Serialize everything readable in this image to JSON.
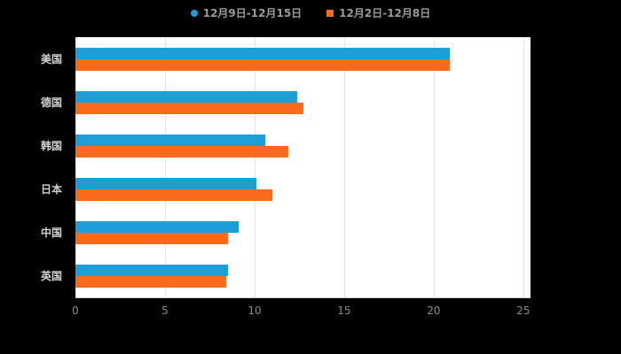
{
  "chart_data": {
    "type": "bar",
    "orientation": "horizontal",
    "title": "",
    "xlabel": "",
    "ylabel": "",
    "categories": [
      "美国",
      "德国",
      "韩国",
      "日本",
      "中国",
      "英国"
    ],
    "series": [
      {
        "name": "12月9日-12月15日",
        "color": "#1E9ED9",
        "marker": "circle",
        "values": [
          20.9,
          12.4,
          10.6,
          10.1,
          9.1,
          8.5
        ]
      },
      {
        "name": "12月2日-12月8日",
        "color": "#FA6B1E",
        "marker": "square",
        "values": [
          20.9,
          12.7,
          11.9,
          11.0,
          8.5,
          8.4
        ]
      }
    ],
    "xlim": [
      0,
      25.4
    ],
    "x_ticks": [
      0,
      5,
      10,
      15,
      20,
      25
    ],
    "grid": true,
    "legend_position": "top-center",
    "plot_background": "#ffffff",
    "page_background": "#000000",
    "gridline_color": "#e3e3e3",
    "axis_line_color": "#d0d0d0",
    "tick_label_color": "#8a8a8a",
    "category_label_color": "#d2d2d2",
    "legend_text_color": "#9a9a9a"
  }
}
